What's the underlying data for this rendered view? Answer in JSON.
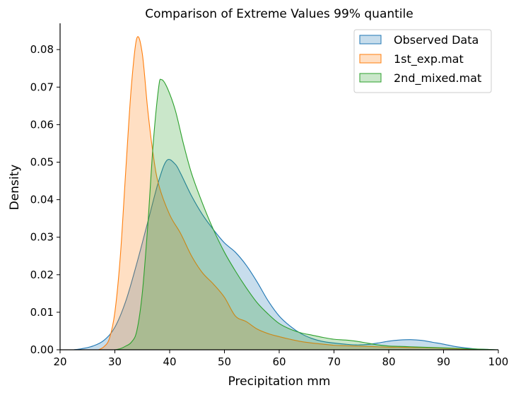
{
  "chart_data": {
    "type": "area",
    "title": "Comparison of Extreme Values 99% quantile",
    "xlabel": "Precipitation mm",
    "ylabel": "Density",
    "xlim": [
      20,
      100
    ],
    "ylim": [
      0,
      0.087
    ],
    "xticks": [
      20,
      30,
      40,
      50,
      60,
      70,
      80,
      90,
      100
    ],
    "yticks": [
      0.0,
      0.01,
      0.02,
      0.03,
      0.04,
      0.05,
      0.06,
      0.07,
      0.08
    ],
    "ytick_labels": [
      "0.00",
      "0.01",
      "0.02",
      "0.03",
      "0.04",
      "0.05",
      "0.06",
      "0.07",
      "0.08"
    ],
    "legend_position": "top-right",
    "grid": false,
    "series": [
      {
        "name": "Observed Data",
        "color": "#1f77b4",
        "points": [
          [
            22.5,
            0.0
          ],
          [
            24,
            0.0003
          ],
          [
            26,
            0.001
          ],
          [
            28,
            0.0025
          ],
          [
            30,
            0.006
          ],
          [
            32,
            0.013
          ],
          [
            34,
            0.023
          ],
          [
            36,
            0.034
          ],
          [
            38,
            0.045
          ],
          [
            39.5,
            0.0505
          ],
          [
            41,
            0.0495
          ],
          [
            42,
            0.047
          ],
          [
            44,
            0.041
          ],
          [
            46,
            0.036
          ],
          [
            48,
            0.032
          ],
          [
            50,
            0.0285
          ],
          [
            52,
            0.026
          ],
          [
            54,
            0.0225
          ],
          [
            56,
            0.018
          ],
          [
            58,
            0.013
          ],
          [
            60,
            0.009
          ],
          [
            62,
            0.0063
          ],
          [
            64,
            0.0043
          ],
          [
            66,
            0.003
          ],
          [
            68,
            0.0022
          ],
          [
            70,
            0.0018
          ],
          [
            72,
            0.0015
          ],
          [
            74,
            0.0013
          ],
          [
            76,
            0.0014
          ],
          [
            78,
            0.0018
          ],
          [
            80,
            0.0023
          ],
          [
            82,
            0.0026
          ],
          [
            84,
            0.0027
          ],
          [
            86,
            0.0025
          ],
          [
            88,
            0.002
          ],
          [
            90,
            0.0015
          ],
          [
            92,
            0.0009
          ],
          [
            94,
            0.0005
          ],
          [
            96,
            0.0002
          ],
          [
            98,
            0.0001
          ],
          [
            99.5,
            0.0
          ]
        ]
      },
      {
        "name": "1st_exp.mat",
        "color": "#ff7f0e",
        "points": [
          [
            27,
            0.0
          ],
          [
            28,
            0.0008
          ],
          [
            29,
            0.003
          ],
          [
            30,
            0.01
          ],
          [
            31,
            0.025
          ],
          [
            32,
            0.048
          ],
          [
            33,
            0.07
          ],
          [
            34,
            0.083
          ],
          [
            35,
            0.079
          ],
          [
            36,
            0.064
          ],
          [
            37,
            0.052
          ],
          [
            38,
            0.044
          ],
          [
            40,
            0.036
          ],
          [
            42,
            0.031
          ],
          [
            44,
            0.025
          ],
          [
            46,
            0.0205
          ],
          [
            48,
            0.0175
          ],
          [
            50,
            0.014
          ],
          [
            52,
            0.009
          ],
          [
            54,
            0.0075
          ],
          [
            56,
            0.0055
          ],
          [
            58,
            0.0043
          ],
          [
            60,
            0.0035
          ],
          [
            62,
            0.0028
          ],
          [
            64,
            0.0022
          ],
          [
            66,
            0.0018
          ],
          [
            68,
            0.0015
          ],
          [
            70,
            0.0012
          ],
          [
            72,
            0.0011
          ],
          [
            74,
            0.001
          ],
          [
            76,
            0.0009
          ],
          [
            78,
            0.0008
          ],
          [
            80,
            0.0007
          ],
          [
            82,
            0.0007
          ],
          [
            84,
            0.0006
          ],
          [
            86,
            0.0006
          ],
          [
            88,
            0.0005
          ],
          [
            90,
            0.0004
          ],
          [
            92,
            0.0003
          ],
          [
            94,
            0.0002
          ],
          [
            96,
            0.0001
          ],
          [
            98,
            0.0
          ],
          [
            100,
            0.0
          ]
        ]
      },
      {
        "name": "2nd_mixed.mat",
        "color": "#2ca02c",
        "points": [
          [
            30,
            0.0
          ],
          [
            31,
            0.0003
          ],
          [
            32,
            0.001
          ],
          [
            33,
            0.002
          ],
          [
            34,
            0.005
          ],
          [
            35,
            0.015
          ],
          [
            36,
            0.033
          ],
          [
            37,
            0.055
          ],
          [
            38,
            0.07
          ],
          [
            38.5,
            0.072
          ],
          [
            39.5,
            0.07
          ],
          [
            41,
            0.064
          ],
          [
            42.5,
            0.055
          ],
          [
            44,
            0.047
          ],
          [
            46,
            0.039
          ],
          [
            48,
            0.032
          ],
          [
            50,
            0.026
          ],
          [
            52,
            0.021
          ],
          [
            54,
            0.0165
          ],
          [
            56,
            0.0125
          ],
          [
            58,
            0.0095
          ],
          [
            60,
            0.007
          ],
          [
            62,
            0.0055
          ],
          [
            64,
            0.0045
          ],
          [
            66,
            0.0039
          ],
          [
            68,
            0.0033
          ],
          [
            70,
            0.0028
          ],
          [
            72,
            0.0026
          ],
          [
            74,
            0.0023
          ],
          [
            76,
            0.0018
          ],
          [
            78,
            0.0013
          ],
          [
            80,
            0.001
          ],
          [
            82,
            0.0009
          ],
          [
            84,
            0.0008
          ],
          [
            86,
            0.0007
          ],
          [
            88,
            0.0006
          ],
          [
            90,
            0.0005
          ],
          [
            92,
            0.0004
          ],
          [
            94,
            0.0003
          ],
          [
            96,
            0.0002
          ],
          [
            98,
            0.0001
          ],
          [
            100,
            0.0
          ]
        ]
      }
    ]
  }
}
